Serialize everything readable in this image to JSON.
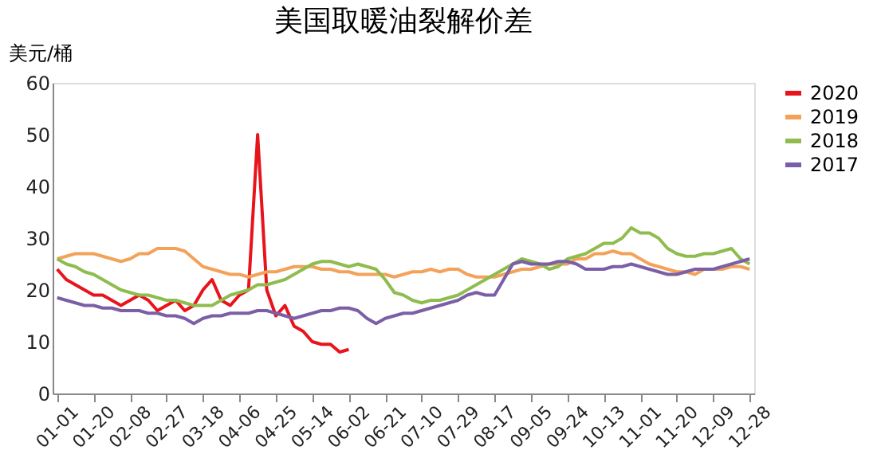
{
  "chart_data": {
    "type": "line",
    "title": "美国取暖油裂解价差",
    "ylabel": "美元/桶",
    "categories": [
      "01-01",
      null,
      null,
      null,
      "01-20",
      null,
      null,
      null,
      "02-08",
      null,
      null,
      null,
      "02-27",
      null,
      null,
      null,
      "03-18",
      null,
      null,
      null,
      "04-06",
      null,
      null,
      null,
      "04-25",
      null,
      null,
      null,
      "05-14",
      null,
      null,
      null,
      "06-02",
      null,
      null,
      null,
      "06-21",
      null,
      null,
      null,
      "07-10",
      null,
      null,
      null,
      "07-29",
      null,
      null,
      null,
      "08-17",
      null,
      null,
      null,
      "09-05",
      null,
      null,
      null,
      "09-24",
      null,
      null,
      null,
      "10-13",
      null,
      null,
      null,
      "11-01",
      null,
      null,
      null,
      "11-20",
      null,
      null,
      null,
      "12-09",
      null,
      null,
      null,
      "12-28"
    ],
    "series": [
      {
        "name": "2020",
        "color": "#e8141b",
        "values": [
          24,
          22,
          21,
          20,
          19,
          19,
          18,
          17,
          18,
          19,
          18,
          16,
          17,
          18,
          16,
          17,
          20,
          22,
          18,
          17,
          19,
          20,
          50,
          20,
          15,
          17,
          13,
          12,
          10,
          9.5,
          9.5,
          8,
          8.5,
          null,
          null,
          null,
          null,
          null,
          null,
          null,
          null,
          null,
          null,
          null,
          null,
          null,
          null,
          null,
          null,
          null,
          null,
          null,
          null,
          null,
          null,
          null,
          null,
          null,
          null,
          null,
          null,
          null,
          null,
          null,
          null,
          null,
          null,
          null,
          null,
          null,
          null,
          null,
          null,
          null,
          null,
          null,
          null
        ]
      },
      {
        "name": "2019",
        "color": "#f4a25a",
        "values": [
          26,
          26.5,
          27,
          27,
          27,
          26.5,
          26,
          25.5,
          26,
          27,
          27,
          28,
          28,
          28,
          27.5,
          26,
          24.5,
          24,
          23.5,
          23,
          23,
          22.5,
          23,
          23.5,
          23.5,
          24,
          24.5,
          24.5,
          24.5,
          24,
          24,
          23.5,
          23.5,
          23,
          23,
          23,
          23,
          22.5,
          23,
          23.5,
          23.5,
          24,
          23.5,
          24,
          24,
          23,
          22.5,
          22.5,
          22.5,
          23,
          23.5,
          24,
          24,
          24.5,
          25,
          25,
          25,
          26,
          26,
          27,
          27,
          27.5,
          27,
          27,
          26,
          25,
          24.5,
          24,
          23.5,
          23.5,
          23,
          24,
          24,
          24,
          24.5,
          24.5,
          24
        ]
      },
      {
        "name": "2018",
        "color": "#8fbc4f",
        "values": [
          26,
          25,
          24.5,
          23.5,
          23,
          22,
          21,
          20,
          19.5,
          19,
          19,
          18.5,
          18,
          18,
          17.5,
          17,
          17,
          17,
          18,
          19,
          19.5,
          20,
          21,
          21,
          21.5,
          22,
          23,
          24,
          25,
          25.5,
          25.5,
          25,
          24.5,
          25,
          24.5,
          24,
          22,
          19.5,
          19,
          18,
          17.5,
          18,
          18,
          18.5,
          19,
          20,
          21,
          22,
          23,
          24,
          25,
          26,
          25.5,
          25,
          24,
          24.5,
          26,
          26.5,
          27,
          28,
          29,
          29,
          30,
          32,
          31,
          31,
          30,
          28,
          27,
          26.5,
          26.5,
          27,
          27,
          27.5,
          28,
          26,
          25
        ]
      },
      {
        "name": "2017",
        "color": "#7b5fa6",
        "values": [
          18.5,
          18,
          17.5,
          17,
          17,
          16.5,
          16.5,
          16,
          16,
          16,
          15.5,
          15.5,
          15,
          15,
          14.5,
          13.5,
          14.5,
          15,
          15,
          15.5,
          15.5,
          15.5,
          16,
          16,
          15.5,
          15,
          14.5,
          15,
          15.5,
          16,
          16,
          16.5,
          16.5,
          16,
          14.5,
          13.5,
          14.5,
          15,
          15.5,
          15.5,
          16,
          16.5,
          17,
          17.5,
          18,
          19,
          19.5,
          19,
          19,
          22,
          25,
          25.5,
          25,
          25,
          25,
          25.5,
          25.5,
          25,
          24,
          24,
          24,
          24.5,
          24.5,
          25,
          24.5,
          24,
          23.5,
          23,
          23,
          23.5,
          24,
          24,
          24,
          24.5,
          25,
          25.5,
          26
        ]
      }
    ],
    "ylim": [
      0,
      60
    ],
    "yticks": [
      0,
      10,
      20,
      30,
      40,
      50,
      60
    ],
    "grid": false,
    "legend": "right",
    "marker": "none",
    "line_style": "solid"
  }
}
